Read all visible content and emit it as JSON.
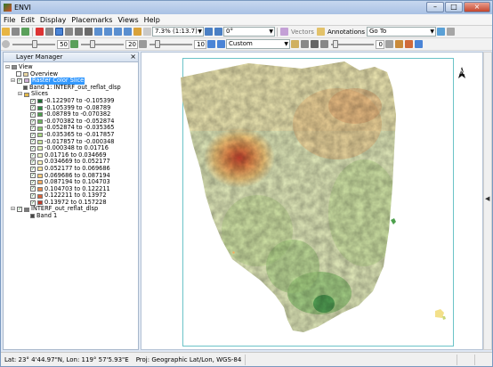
{
  "window": {
    "title": "ENVI",
    "min": "–",
    "max": "□",
    "close": "×"
  },
  "menu": [
    "File",
    "Edit",
    "Display",
    "Placemarks",
    "Views",
    "Help"
  ],
  "toolbar1": {
    "zoom": "7.3% (1:13.7)",
    "rotation": "0°",
    "vectors": "Vectors",
    "annotations": "Annotations",
    "goto": "Go To"
  },
  "toolbar2": {
    "value1": "50",
    "value2": "20",
    "value3": "10",
    "stretch": "Custom",
    "value4": "0"
  },
  "layer_manager": {
    "title": "Layer Manager",
    "close": "×",
    "tree": {
      "view": "View",
      "overview": "Overview",
      "raster_color_slice": "Raster Color Slice",
      "band_source": "Band 1: INTERF_out_reflat_dlsp",
      "slices_label": "Slices",
      "slices": [
        {
          "label": "-0.122907 to -0.105399",
          "color": "#1e6b32"
        },
        {
          "label": "-0.105399 to -0.08789",
          "color": "#2e8b3f"
        },
        {
          "label": "-0.08789 to -0.070382",
          "color": "#4da04d"
        },
        {
          "label": "-0.070382 to -0.052874",
          "color": "#6db45e"
        },
        {
          "label": "-0.052874 to -0.035365",
          "color": "#8cc770"
        },
        {
          "label": "-0.035365 to -0.017857",
          "color": "#aad583"
        },
        {
          "label": "-0.017857 to -0.000348",
          "color": "#c6e29a"
        },
        {
          "label": "-0.000348 to 0.01716",
          "color": "#dcedb2"
        },
        {
          "label": "0.01716 to 0.034669",
          "color": "#eef4c6"
        },
        {
          "label": "0.034669 to 0.052177",
          "color": "#f9f1b8"
        },
        {
          "label": "0.052177 to 0.069686",
          "color": "#fbe39b"
        },
        {
          "label": "0.069686 to 0.087194",
          "color": "#f8cb7c"
        },
        {
          "label": "0.087194 to 0.104703",
          "color": "#f3ad62"
        },
        {
          "label": "0.104703 to 0.122211",
          "color": "#e98a4c"
        },
        {
          "label": "0.122211 to 0.13972",
          "color": "#d9633a"
        },
        {
          "label": "0.13972 to 0.157228",
          "color": "#c23d2c"
        }
      ],
      "second_layer": "INTERF_out_reflat_dlsp",
      "second_band": "Band 1"
    }
  },
  "status_bar": {
    "coords": "Lat: 23° 4'44.97\"N, Lon: 119° 57'5.93\"E",
    "projection": "Proj: Geographic Lat/Lon, WGS-84"
  },
  "map": {
    "north_label": "N"
  }
}
